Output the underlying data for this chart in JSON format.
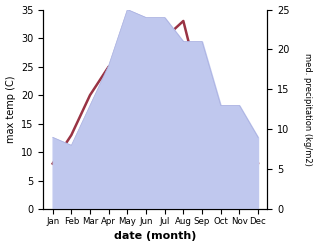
{
  "months": [
    "Jan",
    "Feb",
    "Mar",
    "Apr",
    "May",
    "Jun",
    "Jul",
    "Aug",
    "Sep",
    "Oct",
    "Nov",
    "Dec"
  ],
  "x": [
    0,
    1,
    2,
    3,
    4,
    5,
    6,
    7,
    8,
    9,
    10,
    11
  ],
  "temperature": [
    8,
    13,
    20,
    25,
    25.5,
    30,
    30,
    33,
    20,
    13,
    9,
    8
  ],
  "precipitation": [
    9,
    8,
    13,
    18,
    25,
    24,
    24,
    21,
    21,
    13,
    13,
    9
  ],
  "temp_color": "#993344",
  "precip_fill_color": "#c0c8ee",
  "precip_edge_color": "#aab0e0",
  "left_ylim": [
    0,
    35
  ],
  "right_ylim": [
    0,
    25
  ],
  "left_yticks": [
    0,
    5,
    10,
    15,
    20,
    25,
    30,
    35
  ],
  "right_yticks": [
    0,
    5,
    10,
    15,
    20,
    25
  ],
  "xlabel": "date (month)",
  "ylabel_left": "max temp (C)",
  "ylabel_right": "med. precipitation (kg/m2)",
  "line_width": 1.8,
  "bg_color": "#ffffff"
}
